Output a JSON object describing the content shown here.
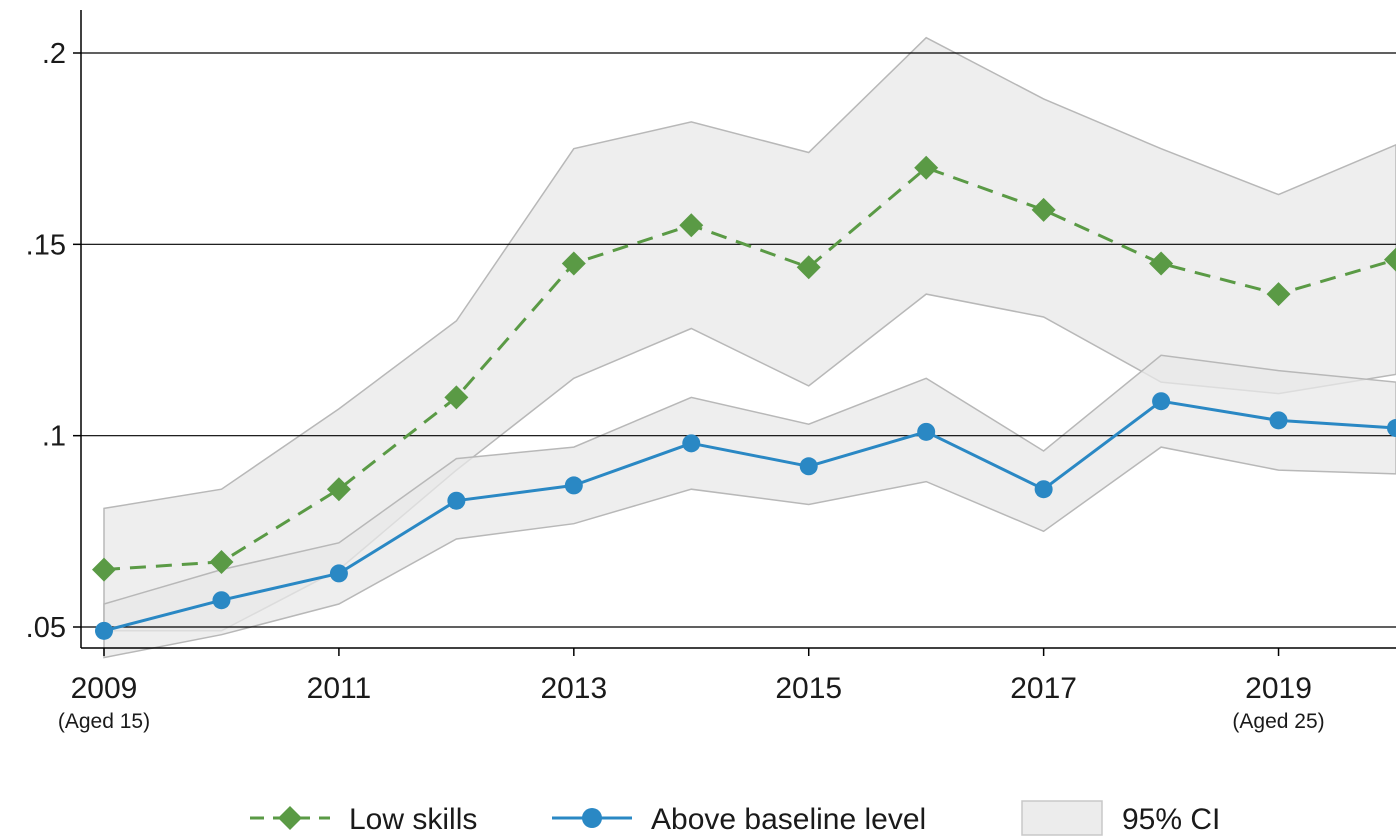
{
  "chart_data": {
    "type": "line",
    "x": [
      2009,
      2010,
      2011,
      2012,
      2013,
      2014,
      2015,
      2016,
      2017,
      2018,
      2019,
      2020
    ],
    "xlim": [
      2009,
      2020
    ],
    "ylim": [
      0.035,
      0.21
    ],
    "yticks": [
      0.05,
      0.1,
      0.15,
      0.2
    ],
    "ytick_labels": [
      ".05",
      ".1",
      ".15",
      ".2"
    ],
    "xticks": [
      {
        "value": 2009,
        "label": "2009",
        "sublabel": "(Aged 15)"
      },
      {
        "value": 2011,
        "label": "2011",
        "sublabel": ""
      },
      {
        "value": 2013,
        "label": "2013",
        "sublabel": ""
      },
      {
        "value": 2015,
        "label": "2015",
        "sublabel": ""
      },
      {
        "value": 2017,
        "label": "2017",
        "sublabel": ""
      },
      {
        "value": 2019,
        "label": "2019",
        "sublabel": "(Aged 25)"
      }
    ],
    "grid": "horizontal",
    "legend_position": "bottom",
    "series": [
      {
        "name": "Low skills",
        "color": "#5a9a45",
        "line_style": "dashed",
        "marker": "diamond",
        "values": [
          0.065,
          0.067,
          0.086,
          0.11,
          0.145,
          0.155,
          0.144,
          0.17,
          0.159,
          0.145,
          0.137,
          0.146
        ],
        "ci_lower": [
          0.049,
          0.049,
          0.065,
          0.091,
          0.115,
          0.128,
          0.113,
          0.137,
          0.131,
          0.114,
          0.111,
          0.116
        ],
        "ci_upper": [
          0.081,
          0.086,
          0.107,
          0.13,
          0.175,
          0.182,
          0.174,
          0.204,
          0.188,
          0.175,
          0.163,
          0.176
        ]
      },
      {
        "name": "Above baseline level",
        "color": "#2a88c4",
        "line_style": "solid",
        "marker": "circle",
        "values": [
          0.049,
          0.057,
          0.064,
          0.083,
          0.087,
          0.098,
          0.092,
          0.101,
          0.086,
          0.109,
          0.104,
          0.102
        ],
        "ci_lower": [
          0.042,
          0.048,
          0.056,
          0.073,
          0.077,
          0.086,
          0.082,
          0.088,
          0.075,
          0.097,
          0.091,
          0.09
        ],
        "ci_upper": [
          0.056,
          0.065,
          0.072,
          0.094,
          0.097,
          0.11,
          0.103,
          0.115,
          0.096,
          0.121,
          0.117,
          0.114
        ]
      }
    ],
    "ci_band": {
      "label": "95% CI",
      "fill": "#e8e8e8",
      "stroke": "#b8b8b8"
    }
  }
}
